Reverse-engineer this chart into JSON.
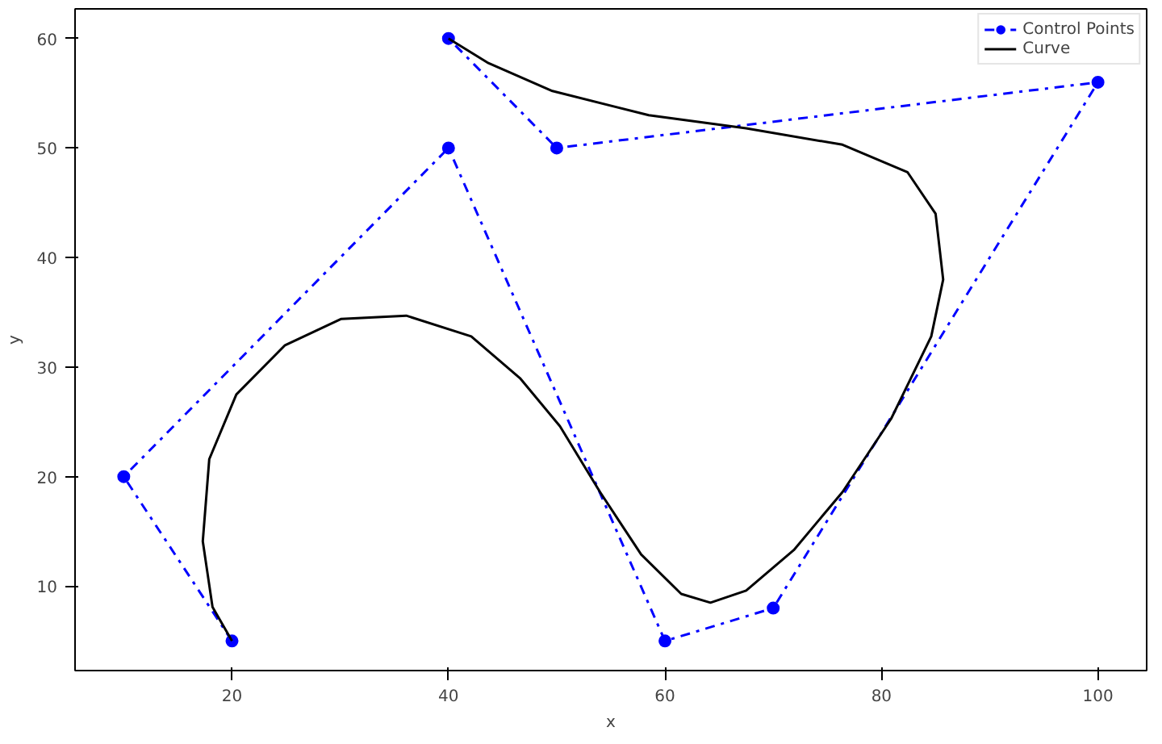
{
  "chart_data": {
    "type": "line",
    "xlabel": "x",
    "ylabel": "y",
    "xlim": [
      5.5,
      104.5
    ],
    "ylim": [
      2.3,
      62.7
    ],
    "xticks": [
      20,
      40,
      60,
      80,
      100
    ],
    "yticks": [
      10,
      20,
      30,
      40,
      50,
      60
    ],
    "grid": false,
    "legend": "top right",
    "series": [
      {
        "name": "Control Points",
        "color": "#0000ff",
        "marker": "circle",
        "line_style": "dashdot",
        "x": [
          20,
          10,
          40,
          60,
          70,
          100,
          50,
          40
        ],
        "values": [
          5,
          20,
          50,
          5,
          8,
          56,
          50,
          60
        ]
      },
      {
        "name": "Curve",
        "color": "#000000",
        "marker": "none",
        "line_style": "solid",
        "x": [
          20,
          18.2,
          17.3,
          17.9,
          20.4,
          24.9,
          30.1,
          36.1,
          42.1,
          46.6,
          50.3,
          54,
          57.8,
          61.5,
          64.2,
          67.5,
          71.9,
          76.4,
          80.9,
          84.6,
          85.7,
          85,
          82.4,
          76.4,
          67.5,
          58.5,
          49.6,
          43.6,
          40
        ],
        "values": [
          5,
          8.1,
          14.1,
          21.6,
          27.5,
          32,
          34.4,
          34.7,
          32.8,
          29,
          24.6,
          18.6,
          12.9,
          9.3,
          8.5,
          9.6,
          13.3,
          18.6,
          25.3,
          32.8,
          38,
          44,
          47.8,
          50.3,
          51.8,
          53,
          55.2,
          57.8,
          60
        ]
      }
    ]
  }
}
